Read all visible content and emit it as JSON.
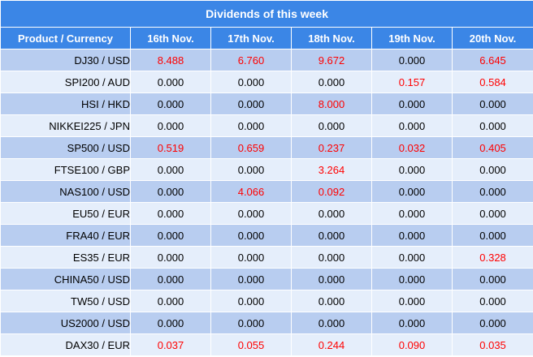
{
  "title": "Dividends of this week",
  "columns": [
    "Product / Currency",
    "16th Nov.",
    "17th Nov.",
    "18th Nov.",
    "19th Nov.",
    "20th Nov."
  ],
  "highlight_color": "#ff0000",
  "header_color": "#3b86e6",
  "rows": [
    {
      "product": "DJ30 / USD",
      "values": [
        "8.488",
        "6.760",
        "9.672",
        "0.000",
        "6.645"
      ]
    },
    {
      "product": "SPI200 / AUD",
      "values": [
        "0.000",
        "0.000",
        "0.000",
        "0.157",
        "0.584"
      ]
    },
    {
      "product": "HSI / HKD",
      "values": [
        "0.000",
        "0.000",
        "8.000",
        "0.000",
        "0.000"
      ]
    },
    {
      "product": "NIKKEI225 / JPN",
      "values": [
        "0.000",
        "0.000",
        "0.000",
        "0.000",
        "0.000"
      ]
    },
    {
      "product": "SP500 / USD",
      "values": [
        "0.519",
        "0.659",
        "0.237",
        "0.032",
        "0.405"
      ]
    },
    {
      "product": "FTSE100 / GBP",
      "values": [
        "0.000",
        "0.000",
        "3.264",
        "0.000",
        "0.000"
      ]
    },
    {
      "product": "NAS100 / USD",
      "values": [
        "0.000",
        "4.066",
        "0.092",
        "0.000",
        "0.000"
      ]
    },
    {
      "product": "EU50 / EUR",
      "values": [
        "0.000",
        "0.000",
        "0.000",
        "0.000",
        "0.000"
      ]
    },
    {
      "product": "FRA40 / EUR",
      "values": [
        "0.000",
        "0.000",
        "0.000",
        "0.000",
        "0.000"
      ]
    },
    {
      "product": "ES35 / EUR",
      "values": [
        "0.000",
        "0.000",
        "0.000",
        "0.000",
        "0.328"
      ]
    },
    {
      "product": "CHINA50 / USD",
      "values": [
        "0.000",
        "0.000",
        "0.000",
        "0.000",
        "0.000"
      ]
    },
    {
      "product": "TW50 / USD",
      "values": [
        "0.000",
        "0.000",
        "0.000",
        "0.000",
        "0.000"
      ]
    },
    {
      "product": "US2000 / USD",
      "values": [
        "0.000",
        "0.000",
        "0.000",
        "0.000",
        "0.000"
      ]
    },
    {
      "product": "DAX30 / EUR",
      "values": [
        "0.037",
        "0.055",
        "0.244",
        "0.090",
        "0.035"
      ]
    }
  ]
}
